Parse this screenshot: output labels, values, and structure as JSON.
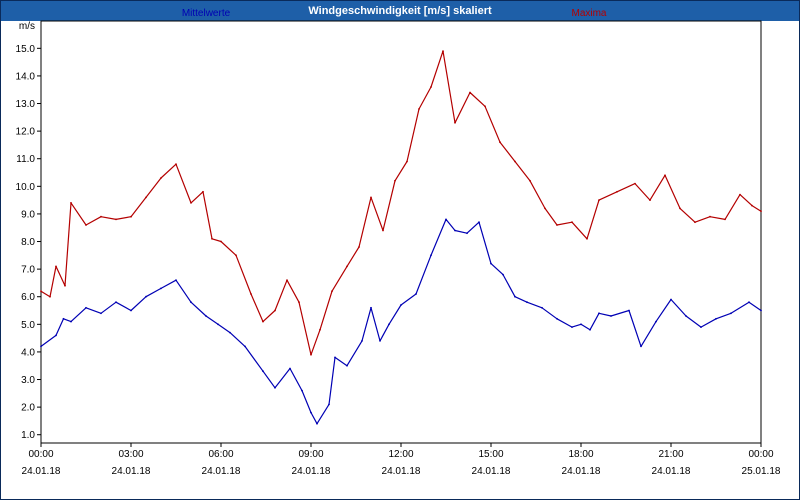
{
  "window": {
    "title": "Windgeschwindigkeit [m/s] skaliert"
  },
  "chart_data": {
    "type": "line",
    "ylabel": "m/s",
    "ylim": [
      0.7,
      15.7
    ],
    "xlim_hours": [
      0,
      24
    ],
    "y_ticks": [
      "1.0",
      "2.0",
      "3.0",
      "4.0",
      "5.0",
      "6.0",
      "7.0",
      "8.0",
      "9.0",
      "10.0",
      "11.0",
      "12.0",
      "13.0",
      "14.0",
      "15.0"
    ],
    "x_ticks": [
      {
        "hour": 0,
        "time": "00:00",
        "date": "24.01.18"
      },
      {
        "hour": 3,
        "time": "03:00",
        "date": "24.01.18"
      },
      {
        "hour": 6,
        "time": "06:00",
        "date": "24.01.18"
      },
      {
        "hour": 9,
        "time": "09:00",
        "date": "24.01.18"
      },
      {
        "hour": 12,
        "time": "12:00",
        "date": "24.01.18"
      },
      {
        "hour": 15,
        "time": "15:00",
        "date": "24.01.18"
      },
      {
        "hour": 18,
        "time": "18:00",
        "date": "24.01.18"
      },
      {
        "hour": 21,
        "time": "21:00",
        "date": "24.01.18"
      },
      {
        "hour": 24,
        "time": "00:00",
        "date": "25.01.18"
      }
    ],
    "grid": true,
    "series": [
      {
        "name": "Mittelwerte",
        "color": "#0000b4",
        "points": [
          [
            0,
            4.2
          ],
          [
            0.5,
            4.6
          ],
          [
            0.75,
            5.2
          ],
          [
            1.0,
            5.1
          ],
          [
            1.5,
            5.6
          ],
          [
            2.0,
            5.4
          ],
          [
            2.5,
            5.8
          ],
          [
            3.0,
            5.5
          ],
          [
            3.5,
            6.0
          ],
          [
            4.0,
            6.3
          ],
          [
            4.5,
            6.6
          ],
          [
            5.0,
            5.8
          ],
          [
            5.5,
            5.3
          ],
          [
            5.9,
            5.0
          ],
          [
            6.3,
            4.7
          ],
          [
            6.8,
            4.2
          ],
          [
            7.4,
            3.3
          ],
          [
            7.8,
            2.7
          ],
          [
            8.3,
            3.4
          ],
          [
            8.7,
            2.6
          ],
          [
            9.0,
            1.8
          ],
          [
            9.2,
            1.4
          ],
          [
            9.6,
            2.1
          ],
          [
            9.8,
            3.8
          ],
          [
            10.2,
            3.5
          ],
          [
            10.7,
            4.4
          ],
          [
            11.0,
            5.6
          ],
          [
            11.3,
            4.4
          ],
          [
            11.6,
            5.0
          ],
          [
            12.0,
            5.7
          ],
          [
            12.5,
            6.1
          ],
          [
            13.0,
            7.5
          ],
          [
            13.5,
            8.8
          ],
          [
            13.8,
            8.4
          ],
          [
            14.2,
            8.3
          ],
          [
            14.6,
            8.7
          ],
          [
            15.0,
            7.2
          ],
          [
            15.4,
            6.8
          ],
          [
            15.8,
            6.0
          ],
          [
            16.2,
            5.8
          ],
          [
            16.7,
            5.6
          ],
          [
            17.2,
            5.2
          ],
          [
            17.7,
            4.9
          ],
          [
            18.0,
            5.0
          ],
          [
            18.3,
            4.8
          ],
          [
            18.6,
            5.4
          ],
          [
            19.0,
            5.3
          ],
          [
            19.6,
            5.5
          ],
          [
            20.0,
            4.2
          ],
          [
            20.5,
            5.1
          ],
          [
            21.0,
            5.9
          ],
          [
            21.5,
            5.3
          ],
          [
            22.0,
            4.9
          ],
          [
            22.5,
            5.2
          ],
          [
            23.0,
            5.4
          ],
          [
            23.6,
            5.8
          ],
          [
            24.0,
            5.5
          ]
        ]
      },
      {
        "name": "Maxima",
        "color": "#b40000",
        "points": [
          [
            0,
            6.2
          ],
          [
            0.3,
            6.0
          ],
          [
            0.5,
            7.1
          ],
          [
            0.8,
            6.4
          ],
          [
            1.0,
            9.4
          ],
          [
            1.5,
            8.6
          ],
          [
            2.0,
            8.9
          ],
          [
            2.5,
            8.8
          ],
          [
            3.0,
            8.9
          ],
          [
            3.5,
            9.6
          ],
          [
            4.0,
            10.3
          ],
          [
            4.5,
            10.8
          ],
          [
            5.0,
            9.4
          ],
          [
            5.4,
            9.8
          ],
          [
            5.7,
            8.1
          ],
          [
            6.0,
            8.0
          ],
          [
            6.5,
            7.5
          ],
          [
            7.0,
            6.1
          ],
          [
            7.4,
            5.1
          ],
          [
            7.8,
            5.5
          ],
          [
            8.2,
            6.6
          ],
          [
            8.6,
            5.8
          ],
          [
            9.0,
            3.9
          ],
          [
            9.3,
            4.8
          ],
          [
            9.7,
            6.2
          ],
          [
            10.2,
            7.1
          ],
          [
            10.6,
            7.8
          ],
          [
            11.0,
            9.6
          ],
          [
            11.4,
            8.4
          ],
          [
            11.8,
            10.2
          ],
          [
            12.2,
            10.9
          ],
          [
            12.6,
            12.8
          ],
          [
            13.0,
            13.6
          ],
          [
            13.4,
            14.9
          ],
          [
            13.8,
            12.3
          ],
          [
            14.3,
            13.4
          ],
          [
            14.8,
            12.9
          ],
          [
            15.3,
            11.6
          ],
          [
            15.8,
            10.9
          ],
          [
            16.3,
            10.2
          ],
          [
            16.8,
            9.2
          ],
          [
            17.2,
            8.6
          ],
          [
            17.7,
            8.7
          ],
          [
            18.2,
            8.1
          ],
          [
            18.6,
            9.5
          ],
          [
            19.2,
            9.8
          ],
          [
            19.8,
            10.1
          ],
          [
            20.3,
            9.5
          ],
          [
            20.8,
            10.4
          ],
          [
            21.3,
            9.2
          ],
          [
            21.8,
            8.7
          ],
          [
            22.3,
            8.9
          ],
          [
            22.8,
            8.8
          ],
          [
            23.3,
            9.7
          ],
          [
            23.7,
            9.3
          ],
          [
            24.0,
            9.1
          ]
        ]
      }
    ]
  }
}
